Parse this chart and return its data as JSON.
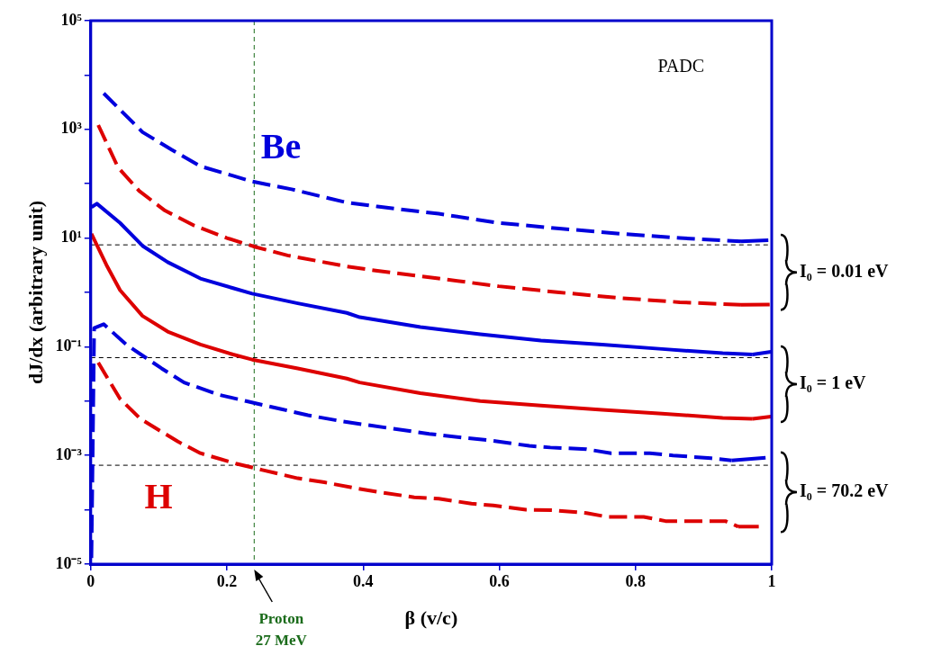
{
  "chart_data": {
    "type": "line",
    "xlabel": "β (v/c)",
    "ylabel": "dJ/dx (arbitrary unit)",
    "log": "y",
    "legend": false,
    "grid": false,
    "xlim": [
      0,
      1
    ],
    "xticks": [
      0,
      0.2,
      0.4,
      0.6,
      0.8,
      1
    ],
    "ylim": [
      1e-05,
      100000
    ],
    "yticks": [
      {
        "value": 1e-05,
        "label": "10⁻⁵"
      },
      {
        "value": 0.0001,
        "label": null
      },
      {
        "value": 0.001,
        "label": "10⁻³"
      },
      {
        "value": 0.01,
        "label": null
      },
      {
        "value": 0.1,
        "label": "10⁻¹"
      },
      {
        "value": 1,
        "label": null
      },
      {
        "value": 10,
        "label": "10¹"
      },
      {
        "value": 100,
        "label": null
      },
      {
        "value": 1000,
        "label": "10³"
      },
      {
        "value": 10000,
        "label": null
      },
      {
        "value": 100000,
        "label": "10⁵"
      }
    ],
    "series": [
      {
        "color": "#0000dd",
        "line_style": "dashed",
        "x": [
          0.019,
          0.076,
          0.119,
          0.161,
          0.209,
          0.237,
          0.295,
          0.376,
          0.421,
          0.511,
          0.599,
          0.688,
          0.777,
          0.865,
          0.955,
          0.995
        ],
        "values": [
          4600,
          890,
          420,
          210,
          140,
          110,
          79,
          45,
          38,
          28,
          19,
          15,
          12,
          10,
          8.7,
          9.1
        ]
      },
      {
        "color": "#dd0000",
        "line_style": "dashed",
        "x": [
          0.011,
          0.04,
          0.071,
          0.109,
          0.152,
          0.2,
          0.243,
          0.289,
          0.376,
          0.421,
          0.511,
          0.599,
          0.688,
          0.777,
          0.865,
          0.955,
          0.997
        ],
        "values": [
          1200,
          200,
          74,
          32,
          17,
          10,
          6.8,
          4.8,
          3.0,
          2.5,
          1.8,
          1.3,
          1.0,
          0.79,
          0.66,
          0.59,
          0.6
        ]
      },
      {
        "color": "#0000dd",
        "line_style": "solid",
        "x": [
          0.001,
          0.009,
          0.043,
          0.076,
          0.113,
          0.161,
          0.209,
          0.237,
          0.304,
          0.376,
          0.395,
          0.484,
          0.572,
          0.661,
          0.751,
          0.839,
          0.928,
          0.972,
          0.999
        ],
        "values": [
          37,
          43,
          19,
          7.2,
          3.6,
          1.8,
          1.2,
          0.95,
          0.63,
          0.42,
          0.35,
          0.23,
          0.17,
          0.13,
          0.11,
          0.091,
          0.076,
          0.072,
          0.081
        ]
      },
      {
        "color": "#dd0000",
        "line_style": "solid",
        "x": [
          0.001,
          0.023,
          0.043,
          0.076,
          0.113,
          0.161,
          0.209,
          0.237,
          0.304,
          0.376,
          0.395,
          0.484,
          0.572,
          0.661,
          0.751,
          0.839,
          0.928,
          0.972,
          0.999
        ],
        "values": [
          12,
          3.2,
          1.1,
          0.37,
          0.19,
          0.11,
          0.072,
          0.058,
          0.04,
          0.026,
          0.022,
          0.014,
          0.01,
          0.0083,
          0.0069,
          0.0059,
          0.0049,
          0.0047,
          0.0052
        ]
      },
      {
        "color": "#0000dd",
        "line_style": "dashed",
        "x": [
          0.001,
          0.005,
          0.019,
          0.052,
          0.104,
          0.137,
          0.189,
          0.228,
          0.28,
          0.319,
          0.371,
          0.408,
          0.461,
          0.497,
          0.551,
          0.585,
          0.644,
          0.675,
          0.728,
          0.764,
          0.821,
          0.855,
          0.911,
          0.941,
          0.991
        ],
        "values": [
          1.3e-05,
          0.22,
          0.26,
          0.11,
          0.04,
          0.022,
          0.013,
          0.01,
          0.0071,
          0.0055,
          0.0042,
          0.0036,
          0.0029,
          0.0025,
          0.0021,
          0.0019,
          0.0015,
          0.0014,
          0.0013,
          0.0011,
          0.0011,
          0.001,
          0.00089,
          0.00081,
          0.00091
        ]
      },
      {
        "color": "#dd0000",
        "line_style": "dashed",
        "x": [
          0.011,
          0.043,
          0.073,
          0.128,
          0.161,
          0.213,
          0.252,
          0.304,
          0.343,
          0.389,
          0.425,
          0.475,
          0.511,
          0.559,
          0.591,
          0.639,
          0.679,
          0.728,
          0.759,
          0.812,
          0.844,
          0.897,
          0.932,
          0.951,
          0.981
        ],
        "values": [
          0.051,
          0.011,
          0.0047,
          0.0018,
          0.0011,
          0.00071,
          0.00054,
          0.00038,
          0.00032,
          0.00025,
          0.00021,
          0.00017,
          0.00016,
          0.00013,
          0.00012,
          0.0001,
          9.8e-05,
          8.7e-05,
          7.4e-05,
          7.4e-05,
          6.2e-05,
          6.2e-05,
          6.2e-05,
          4.9e-05,
          4.9e-05
        ]
      }
    ],
    "ref_lines": [
      {
        "axis": "y",
        "value": 7.5,
        "color": "#000000",
        "line_style": "dashed"
      },
      {
        "axis": "y",
        "value": 0.063,
        "color": "#000000",
        "line_style": "dashed"
      },
      {
        "axis": "y",
        "value": 0.00066,
        "color": "#000000",
        "line_style": "dashed"
      },
      {
        "axis": "x",
        "value": 0.24,
        "color": "#1a6b1a",
        "line_style": "dashed",
        "label": "Proton 27 MeV"
      }
    ],
    "annotations": [
      "PADC",
      "Be",
      "H",
      "I₀ = 0.01 eV",
      "I₀ = 1 eV",
      "I₀ = 70.2 eV"
    ]
  }
}
